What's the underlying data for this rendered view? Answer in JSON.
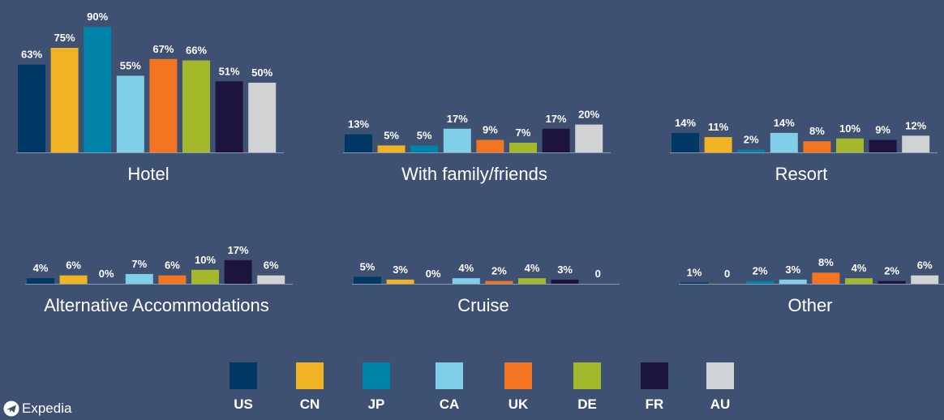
{
  "brand": {
    "name": "Expedia"
  },
  "legend": [
    {
      "label": "US",
      "color": "#003865"
    },
    {
      "label": "CN",
      "color": "#f0b323"
    },
    {
      "label": "JP",
      "color": "#0083a8"
    },
    {
      "label": "CA",
      "color": "#7fcfe9"
    },
    {
      "label": "UK",
      "color": "#f47521"
    },
    {
      "label": "DE",
      "color": "#a4b82b"
    },
    {
      "label": "FR",
      "color": "#1d1540"
    },
    {
      "label": "AU",
      "color": "#d0d2d3"
    }
  ],
  "chart_data": [
    {
      "type": "bar",
      "title": "Hotel",
      "categories": [
        "US",
        "CN",
        "JP",
        "CA",
        "UK",
        "DE",
        "FR",
        "AU"
      ],
      "values": [
        63,
        75,
        90,
        55,
        67,
        66,
        51,
        50
      ],
      "labels": [
        "63%",
        "75%",
        "90%",
        "55%",
        "67%",
        "66%",
        "51%",
        "50%"
      ]
    },
    {
      "type": "bar",
      "title": "With family/friends",
      "categories": [
        "US",
        "CN",
        "JP",
        "CA",
        "UK",
        "DE",
        "FR",
        "AU"
      ],
      "values": [
        13,
        5,
        5,
        17,
        9,
        7,
        17,
        20
      ],
      "labels": [
        "13%",
        "5%",
        "5%",
        "17%",
        "9%",
        "7%",
        "17%",
        "20%"
      ]
    },
    {
      "type": "bar",
      "title": "Resort",
      "categories": [
        "US",
        "CN",
        "JP",
        "CA",
        "UK",
        "DE",
        "FR",
        "AU"
      ],
      "values": [
        14,
        11,
        2,
        14,
        8,
        10,
        9,
        12
      ],
      "labels": [
        "14%",
        "11%",
        "2%",
        "14%",
        "8%",
        "10%",
        "9%",
        "12%"
      ]
    },
    {
      "type": "bar",
      "title": "Alternative Accommodations",
      "categories": [
        "US",
        "CN",
        "JP",
        "CA",
        "UK",
        "DE",
        "FR",
        "AU"
      ],
      "values": [
        4,
        6,
        0,
        7,
        6,
        10,
        17,
        6
      ],
      "labels": [
        "4%",
        "6%",
        "0%",
        "7%",
        "6%",
        "10%",
        "17%",
        "6%"
      ]
    },
    {
      "type": "bar",
      "title": "Cruise",
      "categories": [
        "US",
        "CN",
        "JP",
        "CA",
        "UK",
        "DE",
        "FR",
        "AU"
      ],
      "values": [
        5,
        3,
        0,
        4,
        2,
        4,
        3,
        0
      ],
      "labels": [
        "5%",
        "3%",
        "0%",
        "4%",
        "2%",
        "4%",
        "3%",
        "0"
      ]
    },
    {
      "type": "bar",
      "title": "Other",
      "categories": [
        "US",
        "CN",
        "JP",
        "CA",
        "UK",
        "DE",
        "FR",
        "AU"
      ],
      "values": [
        1,
        0,
        2,
        3,
        8,
        4,
        2,
        6
      ],
      "labels": [
        "1%",
        "0",
        "2%",
        "3%",
        "8%",
        "4%",
        "2%",
        "6%"
      ]
    }
  ]
}
